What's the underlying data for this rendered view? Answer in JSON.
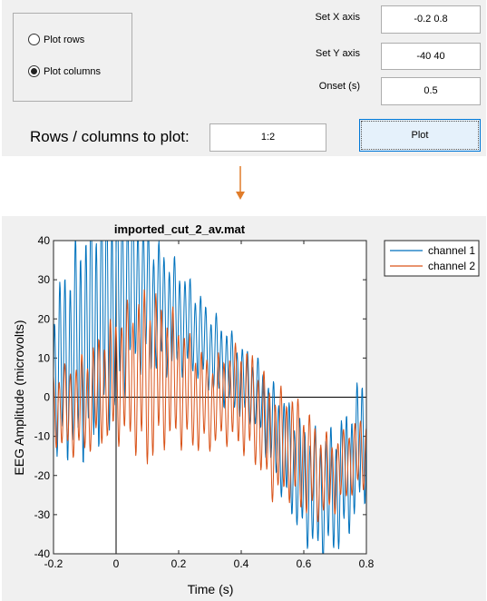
{
  "controls": {
    "radio_options": [
      {
        "label": "Plot rows",
        "checked": false
      },
      {
        "label": "Plot columns",
        "checked": true
      }
    ],
    "set_x_axis": {
      "label": "Set X axis",
      "value": "-0.2 0.8"
    },
    "set_y_axis": {
      "label": "Set Y axis",
      "value": "-40 40"
    },
    "onset": {
      "label": "Onset (s)",
      "value": "0.5"
    },
    "rows_columns": {
      "label": "Rows / columns to plot:",
      "value": "1:2"
    },
    "plot_button": {
      "label": "Plot"
    }
  },
  "colors": {
    "arrow": "#e07c2a",
    "channel1": "#0072bd",
    "channel2": "#d95319",
    "panel": "#f0f0f0",
    "button_bg": "#e5f1fb",
    "button_border": "#0078d7"
  },
  "icons": {
    "connector": "arrow-down-icon"
  },
  "chart_data": {
    "type": "line",
    "title": "imported_cut_2_av.mat",
    "xlabel": "Time (s)",
    "ylabel": "EEG Amplitude (microvolts)",
    "xlim": [
      -0.2,
      0.8
    ],
    "ylim": [
      -40,
      40
    ],
    "xticks": [
      "-0.2",
      "0",
      "0.2",
      "0.4",
      "0.6",
      "0.8"
    ],
    "yticks": [
      "40",
      "30",
      "20",
      "10",
      "0",
      "-10",
      "-20",
      "-30",
      "-40"
    ],
    "legend_position": "outside-top-right",
    "reference_lines": {
      "x": 0,
      "y": 0
    },
    "series": [
      {
        "name": "channel 1",
        "x": [
          -0.2,
          -0.15,
          -0.1,
          -0.05,
          0.0,
          0.05,
          0.1,
          0.15,
          0.2,
          0.25,
          0.3,
          0.35,
          0.4,
          0.45,
          0.5,
          0.55,
          0.6,
          0.65,
          0.7,
          0.75,
          0.8
        ],
        "y": [
          5,
          10,
          15,
          20,
          25,
          30,
          25,
          22,
          20,
          17,
          12,
          8,
          4,
          1,
          -8,
          -15,
          -22,
          -25,
          -24,
          -18,
          -8
        ],
        "amplitude": [
          18,
          22,
          26,
          28,
          26,
          20,
          16,
          14,
          12,
          10,
          9,
          9,
          8,
          8,
          10,
          12,
          13,
          14,
          14,
          14,
          15
        ],
        "cycles_per_second": 60
      },
      {
        "name": "channel 2",
        "x": [
          -0.2,
          -0.15,
          -0.1,
          -0.05,
          0.0,
          0.05,
          0.1,
          0.15,
          0.2,
          0.25,
          0.3,
          0.35,
          0.4,
          0.45,
          0.5,
          0.55,
          0.6,
          0.65,
          0.7,
          0.75,
          0.8
        ],
        "y": [
          -3,
          -3,
          -2,
          2,
          5,
          6,
          5,
          6,
          4,
          0,
          -2,
          0,
          0,
          -4,
          -12,
          -12,
          -16,
          -20,
          -20,
          -16,
          -14
        ],
        "amplitude": [
          8,
          10,
          11,
          12,
          14,
          16,
          20,
          16,
          14,
          12,
          10,
          10,
          12,
          12,
          12,
          12,
          12,
          10,
          8,
          8,
          8
        ],
        "cycles_per_second": 55
      }
    ]
  }
}
